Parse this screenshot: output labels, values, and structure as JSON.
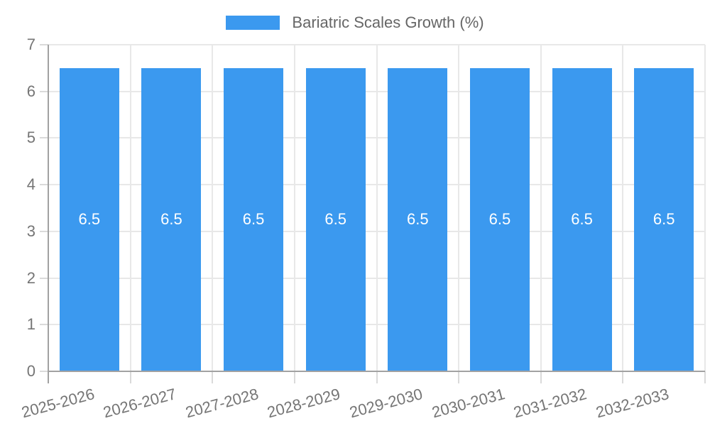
{
  "legend": {
    "label": "Bariatric Scales Growth (%)"
  },
  "chart_data": {
    "type": "bar",
    "title": "",
    "xlabel": "",
    "ylabel": "",
    "categories": [
      "2025-2026",
      "2026-2027",
      "2027-2028",
      "2028-2029",
      "2029-2030",
      "2030-2031",
      "2031-2032",
      "2032-2033"
    ],
    "series": [
      {
        "name": "Bariatric Scales Growth (%)",
        "values": [
          6.5,
          6.5,
          6.5,
          6.5,
          6.5,
          6.5,
          6.5,
          6.5
        ]
      }
    ],
    "bar_value_labels": [
      "6.5",
      "6.5",
      "6.5",
      "6.5",
      "6.5",
      "6.5",
      "6.5",
      "6.5"
    ],
    "ylim": [
      0,
      7
    ],
    "yticks": [
      0,
      1,
      2,
      3,
      4,
      5,
      6,
      7
    ],
    "grid": true,
    "legend_position": "top",
    "colors": {
      "bar": "#3b99ef",
      "grid": "#e8e8e8",
      "tick": "#dadada",
      "axis": "#a2a2a2",
      "axis_text": "#757575",
      "legend_text": "#666666",
      "bar_label": "#ffffff",
      "background": "#ffffff"
    }
  }
}
